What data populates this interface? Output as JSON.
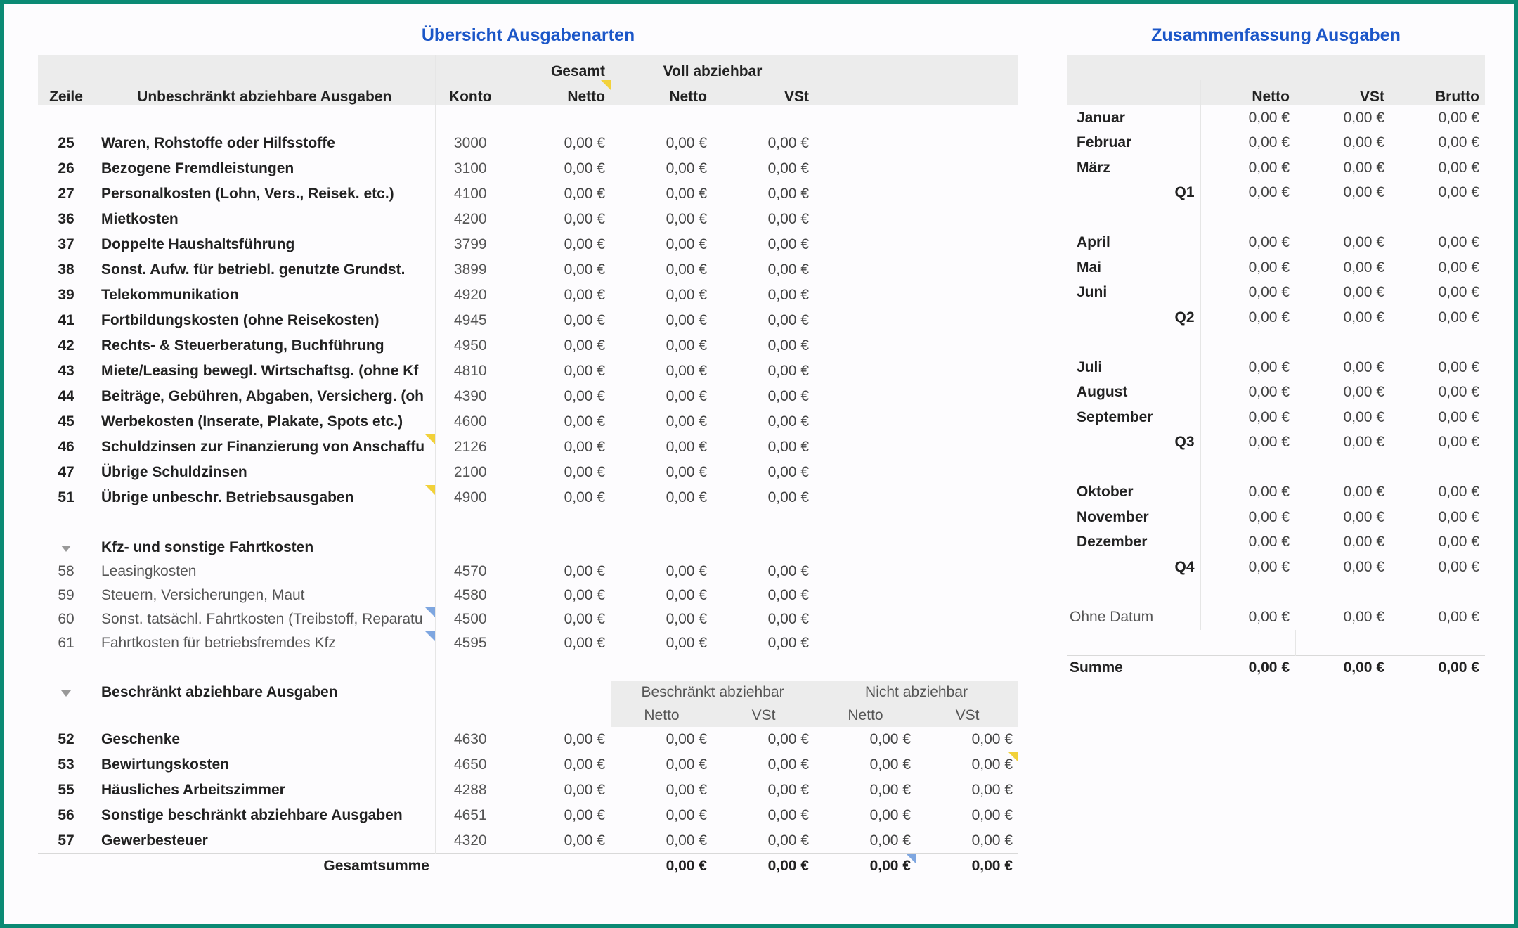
{
  "left": {
    "title": "Übersicht Ausgabenarten",
    "header": {
      "zeile": "Zeile",
      "desc": "Unbeschränkt abziehbare Ausgaben",
      "konto": "Konto",
      "gesamt": "Gesamt",
      "gesamt_netto": "Netto",
      "voll": "Voll abziehbar",
      "voll_netto": "Netto",
      "voll_vst": "VSt"
    },
    "rows": [
      {
        "z": "25",
        "d": "Waren, Rohstoffe oder Hilfsstoffe",
        "k": "3000",
        "g": "0,00 €",
        "n": "0,00 €",
        "v": "0,00 €"
      },
      {
        "z": "26",
        "d": "Bezogene Fremdleistungen",
        "k": "3100",
        "g": "0,00 €",
        "n": "0,00 €",
        "v": "0,00 €"
      },
      {
        "z": "27",
        "d": "Personalkosten (Lohn, Vers., Reisek. etc.)",
        "k": "4100",
        "g": "0,00 €",
        "n": "0,00 €",
        "v": "0,00 €"
      },
      {
        "z": "36",
        "d": "Mietkosten",
        "k": "4200",
        "g": "0,00 €",
        "n": "0,00 €",
        "v": "0,00 €"
      },
      {
        "z": "37",
        "d": "Doppelte Haushaltsführung",
        "k": "3799",
        "g": "0,00 €",
        "n": "0,00 €",
        "v": "0,00 €"
      },
      {
        "z": "38",
        "d": "Sonst. Aufw. für betriebl. genutzte Grundst.",
        "k": "3899",
        "g": "0,00 €",
        "n": "0,00 €",
        "v": "0,00 €"
      },
      {
        "z": "39",
        "d": "Telekommunikation",
        "k": "4920",
        "g": "0,00 €",
        "n": "0,00 €",
        "v": "0,00 €"
      },
      {
        "z": "41",
        "d": "Fortbildungskosten (ohne Reisekosten)",
        "k": "4945",
        "g": "0,00 €",
        "n": "0,00 €",
        "v": "0,00 €"
      },
      {
        "z": "42",
        "d": "Rechts- & Steuerberatung, Buchführung",
        "k": "4950",
        "g": "0,00 €",
        "n": "0,00 €",
        "v": "0,00 €"
      },
      {
        "z": "43",
        "d": "Miete/Leasing bewegl. Wirtschaftsg. (ohne Kf",
        "k": "4810",
        "g": "0,00 €",
        "n": "0,00 €",
        "v": "0,00 €"
      },
      {
        "z": "44",
        "d": "Beiträge, Gebühren, Abgaben, Versicherg. (oh",
        "k": "4390",
        "g": "0,00 €",
        "n": "0,00 €",
        "v": "0,00 €"
      },
      {
        "z": "45",
        "d": "Werbekosten (Inserate, Plakate, Spots etc.)",
        "k": "4600",
        "g": "0,00 €",
        "n": "0,00 €",
        "v": "0,00 €"
      },
      {
        "z": "46",
        "d": "Schuldzinsen zur Finanzierung von Anschaffu",
        "k": "2126",
        "g": "0,00 €",
        "n": "0,00 €",
        "v": "0,00 €"
      },
      {
        "z": "47",
        "d": "Übrige Schuldzinsen",
        "k": "2100",
        "g": "0,00 €",
        "n": "0,00 €",
        "v": "0,00 €"
      },
      {
        "z": "51",
        "d": "Übrige unbeschr. Betriebsausgaben",
        "k": "4900",
        "g": "0,00 €",
        "n": "0,00 €",
        "v": "0,00 €"
      }
    ],
    "kfz": {
      "label": "Kfz- und sonstige Fahrtkosten",
      "rows": [
        {
          "z": "58",
          "d": "Leasingkosten",
          "k": "4570",
          "g": "0,00 €",
          "n": "0,00 €",
          "v": "0,00 €"
        },
        {
          "z": "59",
          "d": "Steuern, Versicherungen, Maut",
          "k": "4580",
          "g": "0,00 €",
          "n": "0,00 €",
          "v": "0,00 €"
        },
        {
          "z": "60",
          "d": "Sonst. tatsächl. Fahrtkosten (Treibstoff, Reparatu",
          "k": "4500",
          "g": "0,00 €",
          "n": "0,00 €",
          "v": "0,00 €"
        },
        {
          "z": "61",
          "d": "Fahrtkosten für betriebsfremdes Kfz",
          "k": "4595",
          "g": "0,00 €",
          "n": "0,00 €",
          "v": "0,00 €"
        }
      ]
    },
    "beschraenkt": {
      "label": "Beschränkt abziehbare Ausgaben",
      "col_b": "Beschränkt abziehbar",
      "col_nb": "Nicht abziehbar",
      "netto": "Netto",
      "vst": "VSt",
      "rows": [
        {
          "z": "52",
          "d": "Geschenke",
          "k": "4630",
          "g": "0,00 €",
          "bn": "0,00 €",
          "bv": "0,00 €",
          "nn": "0,00 €",
          "nv": "0,00 €"
        },
        {
          "z": "53",
          "d": "Bewirtungskosten",
          "k": "4650",
          "g": "0,00 €",
          "bn": "0,00 €",
          "bv": "0,00 €",
          "nn": "0,00 €",
          "nv": "0,00 €"
        },
        {
          "z": "55",
          "d": "Häusliches Arbeitszimmer",
          "k": "4288",
          "g": "0,00 €",
          "bn": "0,00 €",
          "bv": "0,00 €",
          "nn": "0,00 €",
          "nv": "0,00 €"
        },
        {
          "z": "56",
          "d": "Sonstige beschränkt abziehbare Ausgaben",
          "k": "4651",
          "g": "0,00 €",
          "bn": "0,00 €",
          "bv": "0,00 €",
          "nn": "0,00 €",
          "nv": "0,00 €"
        },
        {
          "z": "57",
          "d": "Gewerbesteuer",
          "k": "4320",
          "g": "0,00 €",
          "bn": "0,00 €",
          "bv": "0,00 €",
          "nn": "0,00 €",
          "nv": "0,00 €"
        }
      ]
    },
    "total": {
      "label": "Gesamtsumme",
      "a": "0,00 €",
      "b": "0,00 €",
      "c": "0,00 €",
      "d": "0,00 €"
    }
  },
  "right": {
    "title": "Zusammenfassung Ausgaben",
    "header": {
      "netto": "Netto",
      "vst": "VSt",
      "brutto": "Brutto"
    },
    "rows": [
      {
        "m": "Januar",
        "q": "",
        "n": "0,00 €",
        "v": "0,00 €",
        "b": "0,00 €"
      },
      {
        "m": "Februar",
        "q": "",
        "n": "0,00 €",
        "v": "0,00 €",
        "b": "0,00 €"
      },
      {
        "m": "März",
        "q": "",
        "n": "0,00 €",
        "v": "0,00 €",
        "b": "0,00 €"
      },
      {
        "m": "",
        "q": "Q1",
        "n": "0,00 €",
        "v": "0,00 €",
        "b": "0,00 €"
      },
      {
        "gap": true
      },
      {
        "m": "April",
        "q": "",
        "n": "0,00 €",
        "v": "0,00 €",
        "b": "0,00 €"
      },
      {
        "m": "Mai",
        "q": "",
        "n": "0,00 €",
        "v": "0,00 €",
        "b": "0,00 €"
      },
      {
        "m": "Juni",
        "q": "",
        "n": "0,00 €",
        "v": "0,00 €",
        "b": "0,00 €"
      },
      {
        "m": "",
        "q": "Q2",
        "n": "0,00 €",
        "v": "0,00 €",
        "b": "0,00 €"
      },
      {
        "gap": true
      },
      {
        "m": "Juli",
        "q": "",
        "n": "0,00 €",
        "v": "0,00 €",
        "b": "0,00 €"
      },
      {
        "m": "August",
        "q": "",
        "n": "0,00 €",
        "v": "0,00 €",
        "b": "0,00 €"
      },
      {
        "m": "September",
        "q": "",
        "n": "0,00 €",
        "v": "0,00 €",
        "b": "0,00 €"
      },
      {
        "m": "",
        "q": "Q3",
        "n": "0,00 €",
        "v": "0,00 €",
        "b": "0,00 €"
      },
      {
        "gap": true
      },
      {
        "m": "Oktober",
        "q": "",
        "n": "0,00 €",
        "v": "0,00 €",
        "b": "0,00 €"
      },
      {
        "m": "November",
        "q": "",
        "n": "0,00 €",
        "v": "0,00 €",
        "b": "0,00 €"
      },
      {
        "m": "Dezember",
        "q": "",
        "n": "0,00 €",
        "v": "0,00 €",
        "b": "0,00 €"
      },
      {
        "m": "",
        "q": "Q4",
        "n": "0,00 €",
        "v": "0,00 €",
        "b": "0,00 €"
      },
      {
        "gap": true
      }
    ],
    "ohne": {
      "label": "Ohne Datum",
      "n": "0,00 €",
      "v": "0,00 €",
      "b": "0,00 €"
    },
    "summe": {
      "label": "Summe",
      "n": "0,00 €",
      "v": "0,00 €",
      "b": "0,00 €"
    }
  },
  "flags": {
    "yellow": "#f2d13a",
    "blue": "#7ea6e0",
    "accent": "#1b56c8",
    "frame": "#0b8a74"
  }
}
